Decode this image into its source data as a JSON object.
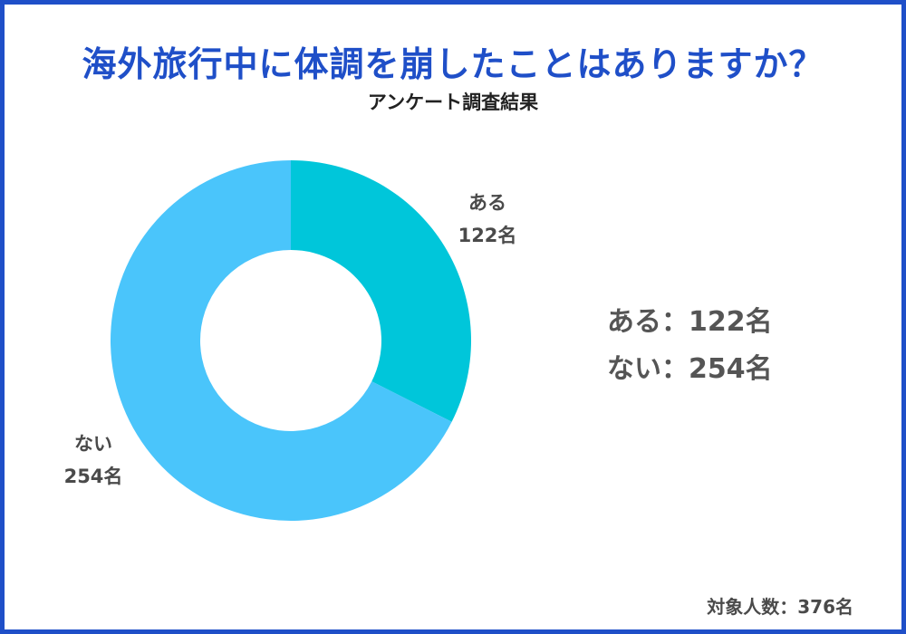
{
  "title": "海外旅行中に体調を崩したことはありますか？",
  "subtitle": "アンケート調査結果",
  "chart_data": {
    "type": "pie",
    "donut": true,
    "categories": [
      "ある",
      "ない"
    ],
    "values": [
      122,
      254
    ],
    "unit": "名",
    "colors": [
      "#00c6da",
      "#4ac5fb"
    ],
    "slice_labels": [
      {
        "name": "ある",
        "value_text": "122名"
      },
      {
        "name": "ない",
        "value_text": "254名"
      }
    ]
  },
  "legend": [
    {
      "label": "ある",
      "separator": "：",
      "value": "122名"
    },
    {
      "label": "ない",
      "separator": "：",
      "value": "254名"
    }
  ],
  "footnote": "対象人数：376名",
  "colors": {
    "frame": "#1f4fc8",
    "title": "#1f4fc8"
  }
}
